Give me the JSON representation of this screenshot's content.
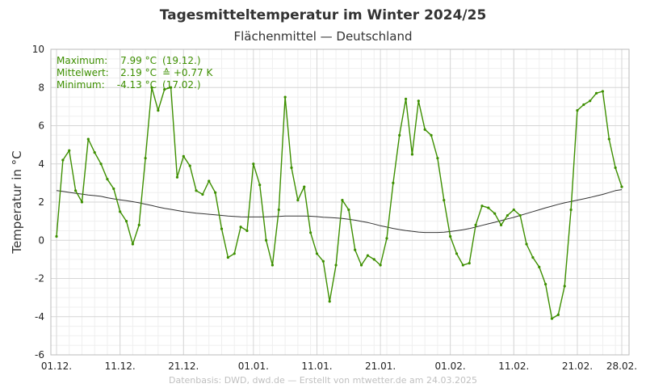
{
  "chart_data": {
    "type": "line",
    "title": "Tagesmitteltemperatur im Winter 2024/25",
    "subtitle": "Flächenmittel — Deutschland",
    "ylabel": "Temperatur in °C",
    "ylim": [
      -6,
      10
    ],
    "yticks": [
      -6,
      -4,
      -2,
      0,
      2,
      4,
      6,
      8,
      10
    ],
    "xlim": [
      0,
      89
    ],
    "xticks": [
      {
        "day": 0,
        "label": "01.12."
      },
      {
        "day": 10,
        "label": "11.12."
      },
      {
        "day": 20,
        "label": "21.12."
      },
      {
        "day": 31,
        "label": "01.01."
      },
      {
        "day": 41,
        "label": "11.01."
      },
      {
        "day": 51,
        "label": "21.01."
      },
      {
        "day": 62,
        "label": "01.02."
      },
      {
        "day": 72,
        "label": "11.02."
      },
      {
        "day": 82,
        "label": "21.02."
      },
      {
        "day": 89,
        "label": "28.02."
      }
    ],
    "grid": true,
    "series": [
      {
        "color": "#3d8f00",
        "values": [
          0.2,
          4.2,
          4.7,
          2.6,
          2.0,
          5.3,
          4.6,
          4.0,
          3.2,
          2.7,
          1.5,
          1.0,
          -0.2,
          0.8,
          4.3,
          8.0,
          6.8,
          7.9,
          8.0,
          3.3,
          4.4,
          3.9,
          2.6,
          2.4,
          3.1,
          2.5,
          0.6,
          -0.9,
          -0.7,
          0.7,
          0.5,
          4.0,
          2.9,
          0.0,
          -1.3,
          1.6,
          7.5,
          3.8,
          2.1,
          2.8,
          0.4,
          -0.7,
          -1.1,
          -3.2,
          -1.3,
          2.1,
          1.6,
          -0.5,
          -1.3,
          -0.8,
          -1.0,
          -1.3,
          0.1,
          3.0,
          5.5,
          7.4,
          4.5,
          7.3,
          5.8,
          5.5,
          4.3,
          2.1,
          0.2,
          -0.7,
          -1.3,
          -1.2,
          0.8,
          1.8,
          1.7,
          1.4,
          0.8,
          1.3,
          1.6,
          1.3,
          -0.2,
          -0.9,
          -1.4,
          -2.3,
          -4.1,
          -3.9,
          -2.4,
          1.6,
          6.8,
          7.1,
          7.3,
          7.7,
          7.8,
          5.3,
          3.8,
          2.8
        ]
      },
      {
        "color": "#333333",
        "values": [
          2.6,
          2.56,
          2.51,
          2.46,
          2.42,
          2.37,
          2.34,
          2.3,
          2.23,
          2.17,
          2.12,
          2.07,
          2.02,
          1.96,
          1.89,
          1.82,
          1.74,
          1.67,
          1.62,
          1.56,
          1.5,
          1.46,
          1.42,
          1.39,
          1.36,
          1.33,
          1.3,
          1.27,
          1.25,
          1.23,
          1.22,
          1.22,
          1.22,
          1.23,
          1.24,
          1.25,
          1.27,
          1.27,
          1.27,
          1.27,
          1.26,
          1.24,
          1.21,
          1.19,
          1.17,
          1.14,
          1.1,
          1.05,
          0.99,
          0.93,
          0.85,
          0.76,
          0.69,
          0.62,
          0.56,
          0.51,
          0.47,
          0.43,
          0.41,
          0.41,
          0.41,
          0.42,
          0.46,
          0.5,
          0.55,
          0.61,
          0.69,
          0.78,
          0.86,
          0.94,
          1.03,
          1.12,
          1.2,
          1.3,
          1.4,
          1.5,
          1.6,
          1.7,
          1.79,
          1.88,
          1.96,
          2.03,
          2.1,
          2.17,
          2.24,
          2.32,
          2.4,
          2.5,
          2.6,
          2.65
        ]
      }
    ]
  },
  "stats": {
    "rows": [
      {
        "label": "Maximum:",
        "value": "7.99 °C",
        "extra": "(19.12.)"
      },
      {
        "label": "Mittelwert:",
        "value": "2.19 °C",
        "extra": "≙ +0.77 K"
      },
      {
        "label": "Minimum:",
        "value": "-4.13 °C",
        "extra": "(17.02.)"
      }
    ]
  },
  "credit": "Datenbasis: DWD, dwd.de — Erstellt von mtwetter.de am 24.03.2025"
}
